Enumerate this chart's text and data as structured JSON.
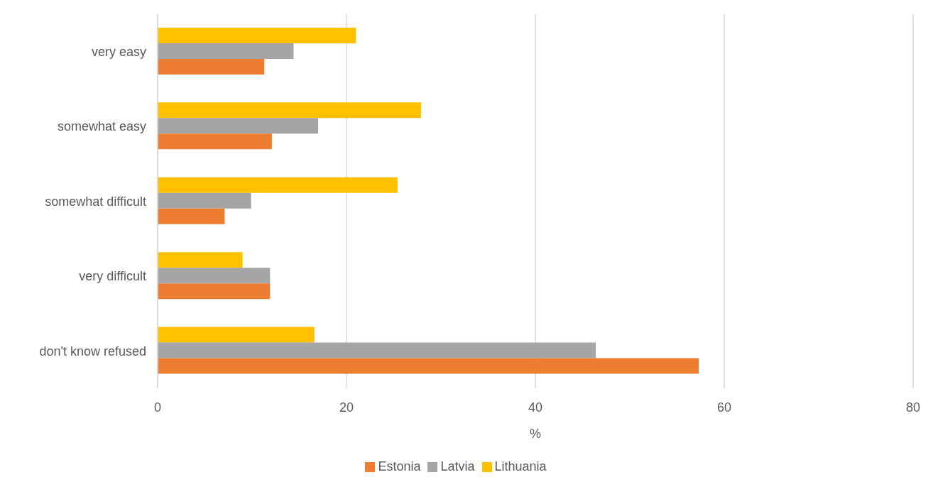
{
  "chart_data": {
    "type": "bar",
    "orientation": "horizontal",
    "xlabel": "%",
    "categories": [
      "very easy",
      "somewhat easy",
      "somewhat difficult",
      "very difficult",
      "don't know refused"
    ],
    "series": [
      {
        "name": "Lithuania",
        "color": "#ffc000",
        "values": [
          21.0,
          27.9,
          25.4,
          9.0,
          16.6
        ]
      },
      {
        "name": "Latvia",
        "color": "#a5a5a5",
        "values": [
          14.4,
          17.0,
          9.9,
          11.9,
          46.4
        ]
      },
      {
        "name": "Estonia",
        "color": "#ed7d31",
        "values": [
          11.3,
          12.1,
          7.1,
          11.9,
          57.3
        ]
      }
    ],
    "xlim": [
      0,
      80
    ],
    "xticks": [
      0,
      20,
      40,
      60,
      80
    ],
    "grid": "x",
    "legend": "bottom"
  }
}
